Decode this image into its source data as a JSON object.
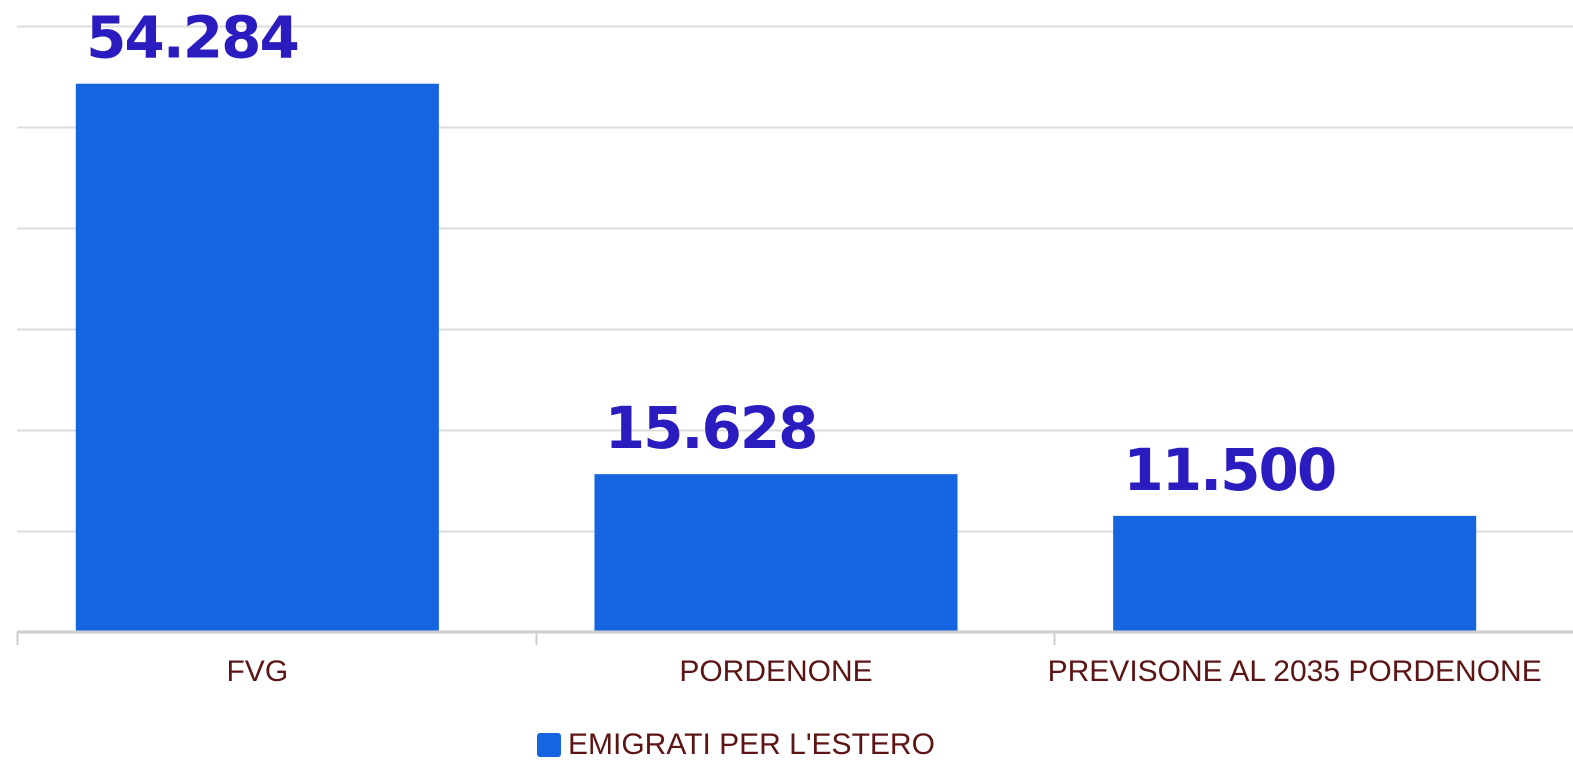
{
  "colors": {
    "bar": "#1565e0",
    "data_label": "#2a1cbf",
    "axis_text": "#5c1414",
    "legend_text": "#5c1414"
  },
  "legend": {
    "label": "EMIGRATI PER L'ESTERO"
  },
  "chart_data": {
    "type": "bar",
    "categories": [
      "FVG",
      "PORDENONE",
      "PREVISONE AL 2035 PORDENONE"
    ],
    "series": [
      {
        "name": "EMIGRATI PER L'ESTERO",
        "values": [
          54284,
          15628,
          11500
        ],
        "labels": [
          "54.284",
          "15.628",
          "11.500"
        ]
      }
    ],
    "title": "",
    "xlabel": "",
    "ylabel": "",
    "ylim": [
      0,
      60000
    ],
    "y_gridline_step": 10000,
    "y_tick_labels_shown": false,
    "grid": true,
    "legend_position": "bottom"
  }
}
